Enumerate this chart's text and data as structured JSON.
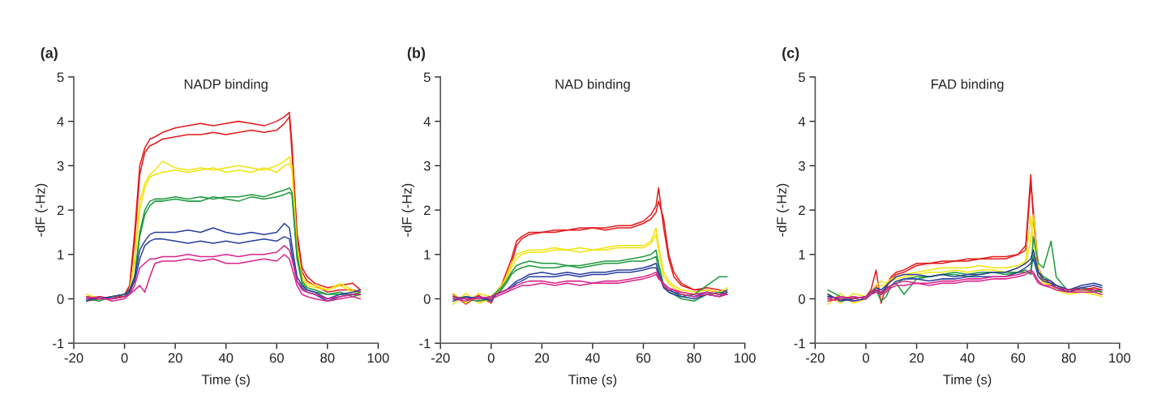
{
  "chart_data": [
    {
      "type": "line",
      "title": "NADP binding",
      "xlabel": "Time (s)",
      "ylabel": "-dF (-Hz)",
      "annotations": [
        "(a)"
      ],
      "xlim": [
        -20,
        100
      ],
      "xticks": [
        -20,
        0,
        20,
        40,
        60,
        80,
        100
      ],
      "ylim": [
        -1,
        5
      ],
      "yticks": [
        -1,
        0,
        1,
        2,
        3,
        4,
        5
      ],
      "grid": false,
      "legend": false,
      "x": [
        -15,
        -10,
        -5,
        0,
        2,
        4,
        6,
        8,
        10,
        12,
        15,
        20,
        25,
        30,
        35,
        40,
        45,
        50,
        55,
        60,
        63,
        65,
        66,
        68,
        70,
        72,
        75,
        80,
        85,
        90,
        93
      ],
      "series": [
        {
          "color": "#e31a1c",
          "values": [
            0.0,
            0.05,
            0.0,
            0.1,
            0.3,
            1.5,
            3.0,
            3.4,
            3.6,
            3.65,
            3.75,
            3.85,
            3.9,
            3.95,
            3.9,
            3.95,
            4.0,
            3.95,
            3.9,
            4.0,
            4.1,
            4.2,
            3.5,
            1.5,
            0.7,
            0.5,
            0.35,
            0.25,
            0.3,
            0.35,
            0.2
          ]
        },
        {
          "color": "#e31a1c",
          "values": [
            -0.05,
            0.0,
            0.05,
            0.05,
            0.25,
            1.3,
            2.8,
            3.3,
            3.45,
            3.5,
            3.6,
            3.65,
            3.7,
            3.7,
            3.75,
            3.7,
            3.75,
            3.8,
            3.75,
            3.8,
            3.95,
            4.1,
            3.3,
            1.4,
            0.6,
            0.4,
            0.3,
            0.15,
            0.2,
            0.2,
            0.15
          ]
        },
        {
          "color": "#f2e30c",
          "values": [
            0.1,
            0.0,
            0.05,
            0.1,
            0.2,
            0.9,
            2.2,
            2.6,
            2.8,
            2.9,
            3.1,
            2.95,
            2.9,
            2.95,
            2.9,
            2.95,
            3.0,
            2.95,
            2.9,
            3.0,
            3.1,
            3.2,
            3.0,
            1.2,
            0.5,
            0.35,
            0.3,
            0.2,
            0.35,
            0.2,
            0.05
          ]
        },
        {
          "color": "#f2e30c",
          "values": [
            0.05,
            0.05,
            0.0,
            0.05,
            0.2,
            0.8,
            2.0,
            2.5,
            2.75,
            2.8,
            2.85,
            2.9,
            2.85,
            2.9,
            2.95,
            2.85,
            2.9,
            2.85,
            2.95,
            2.85,
            3.0,
            3.05,
            2.9,
            1.1,
            0.45,
            0.3,
            0.25,
            0.2,
            0.3,
            0.15,
            0.1
          ]
        },
        {
          "color": "#1f9a3e",
          "values": [
            0.0,
            -0.05,
            0.05,
            0.1,
            0.15,
            0.5,
            1.5,
            2.0,
            2.2,
            2.25,
            2.25,
            2.3,
            2.25,
            2.3,
            2.25,
            2.3,
            2.3,
            2.35,
            2.3,
            2.4,
            2.45,
            2.5,
            2.4,
            1.0,
            0.4,
            0.25,
            0.2,
            0.1,
            0.15,
            0.05,
            0.1
          ]
        },
        {
          "color": "#1f9a3e",
          "values": [
            0.05,
            0.0,
            0.0,
            0.05,
            0.15,
            0.45,
            1.4,
            1.9,
            2.1,
            2.2,
            2.2,
            2.25,
            2.2,
            2.2,
            2.3,
            2.25,
            2.2,
            2.3,
            2.25,
            2.3,
            2.35,
            2.4,
            2.35,
            0.9,
            0.35,
            0.2,
            0.15,
            0.1,
            0.1,
            0.1,
            0.15
          ]
        },
        {
          "color": "#2b3f9e",
          "values": [
            0.0,
            0.0,
            0.05,
            0.1,
            0.2,
            0.5,
            1.1,
            1.3,
            1.45,
            1.5,
            1.5,
            1.5,
            1.55,
            1.5,
            1.6,
            1.5,
            1.45,
            1.5,
            1.45,
            1.5,
            1.7,
            1.6,
            1.2,
            0.5,
            0.3,
            0.2,
            0.15,
            0.0,
            0.1,
            0.15,
            0.2
          ]
        },
        {
          "color": "#2b3f9e",
          "values": [
            -0.05,
            0.05,
            0.0,
            0.05,
            0.15,
            0.4,
            0.9,
            1.2,
            1.3,
            1.35,
            1.35,
            1.3,
            1.25,
            1.3,
            1.25,
            1.3,
            1.25,
            1.3,
            1.35,
            1.3,
            1.4,
            1.35,
            1.0,
            0.4,
            0.25,
            0.15,
            0.1,
            -0.05,
            0.05,
            0.1,
            0.1
          ]
        },
        {
          "color": "#d9248b",
          "values": [
            0.05,
            0.0,
            0.0,
            0.05,
            0.1,
            0.3,
            0.7,
            0.8,
            0.9,
            0.9,
            0.95,
            0.95,
            1.0,
            0.95,
            0.95,
            1.0,
            0.95,
            1.0,
            1.0,
            1.05,
            1.2,
            1.1,
            0.9,
            0.4,
            0.2,
            0.15,
            0.1,
            0.0,
            0.05,
            0.1,
            0.1
          ]
        },
        {
          "color": "#d9248b",
          "values": [
            0.0,
            0.05,
            -0.05,
            0.0,
            0.1,
            0.2,
            0.3,
            0.15,
            0.5,
            0.8,
            0.85,
            0.85,
            0.9,
            0.85,
            0.9,
            0.8,
            0.8,
            0.85,
            0.9,
            0.85,
            1.0,
            0.9,
            0.7,
            0.3,
            0.1,
            0.05,
            0.0,
            -0.05,
            0.0,
            0.05,
            0.0
          ]
        }
      ]
    },
    {
      "type": "line",
      "title": "NAD binding",
      "xlabel": "Time (s)",
      "ylabel": "-dF (-Hz)",
      "annotations": [
        "(b)"
      ],
      "xlim": [
        -20,
        100
      ],
      "xticks": [
        -20,
        0,
        20,
        40,
        60,
        80,
        100
      ],
      "ylim": [
        -1,
        5
      ],
      "yticks": [
        -1,
        0,
        1,
        2,
        3,
        4,
        5
      ],
      "grid": false,
      "legend": false,
      "x": [
        -15,
        -10,
        -5,
        0,
        2,
        4,
        6,
        8,
        10,
        12,
        15,
        20,
        25,
        30,
        35,
        40,
        45,
        50,
        55,
        60,
        63,
        65,
        66,
        68,
        70,
        72,
        75,
        80,
        85,
        90,
        93
      ],
      "series": [
        {
          "color": "#e31a1c",
          "values": [
            0.1,
            -0.12,
            0.08,
            -0.1,
            0.15,
            0.3,
            0.6,
            0.9,
            1.3,
            1.4,
            1.5,
            1.5,
            1.55,
            1.55,
            1.6,
            1.6,
            1.6,
            1.65,
            1.65,
            1.75,
            1.9,
            2.1,
            2.5,
            1.6,
            0.9,
            0.5,
            0.3,
            0.2,
            0.25,
            0.2,
            0.15
          ]
        },
        {
          "color": "#e31a1c",
          "values": [
            0.05,
            0.0,
            -0.05,
            0.0,
            0.1,
            0.25,
            0.5,
            0.8,
            1.2,
            1.35,
            1.45,
            1.5,
            1.5,
            1.55,
            1.55,
            1.6,
            1.55,
            1.6,
            1.6,
            1.7,
            1.8,
            1.95,
            2.2,
            1.8,
            1.0,
            0.6,
            0.35,
            0.2,
            0.2,
            0.15,
            0.1
          ]
        },
        {
          "color": "#f2e30c",
          "values": [
            0.12,
            -0.1,
            0.12,
            0.05,
            0.15,
            0.3,
            0.5,
            0.8,
            1.0,
            1.05,
            1.1,
            1.1,
            1.15,
            1.1,
            1.15,
            1.1,
            1.15,
            1.2,
            1.2,
            1.2,
            1.3,
            1.6,
            1.2,
            0.6,
            0.4,
            0.3,
            0.2,
            0.15,
            0.2,
            0.15,
            0.25
          ]
        },
        {
          "color": "#f2e30c",
          "values": [
            -0.12,
            0.12,
            -0.1,
            0.0,
            0.1,
            0.25,
            0.45,
            0.7,
            0.9,
            1.0,
            1.05,
            1.05,
            1.1,
            1.1,
            1.05,
            1.1,
            1.1,
            1.15,
            1.15,
            1.15,
            1.25,
            1.45,
            1.1,
            0.5,
            0.35,
            0.25,
            0.15,
            0.1,
            0.15,
            0.1,
            0.1
          ]
        },
        {
          "color": "#1f9a3e",
          "values": [
            0.0,
            0.05,
            0.0,
            0.05,
            0.15,
            0.25,
            0.4,
            0.6,
            0.75,
            0.8,
            0.85,
            0.8,
            0.8,
            0.75,
            0.75,
            0.8,
            0.85,
            0.85,
            0.9,
            0.95,
            1.0,
            1.1,
            0.8,
            0.3,
            0.2,
            0.15,
            0.05,
            0.1,
            0.3,
            0.5,
            0.5
          ]
        },
        {
          "color": "#1f9a3e",
          "values": [
            0.05,
            0.0,
            -0.05,
            0.0,
            0.1,
            0.2,
            0.35,
            0.55,
            0.65,
            0.7,
            0.75,
            0.7,
            0.7,
            0.75,
            0.7,
            0.75,
            0.8,
            0.8,
            0.85,
            0.85,
            0.9,
            0.95,
            0.7,
            0.3,
            0.15,
            0.1,
            0.0,
            -0.05,
            0.1,
            0.15,
            0.1
          ]
        },
        {
          "color": "#2b3f9e",
          "values": [
            0.0,
            0.0,
            0.05,
            -0.05,
            0.1,
            0.15,
            0.2,
            0.3,
            0.4,
            0.45,
            0.55,
            0.6,
            0.55,
            0.6,
            0.55,
            0.6,
            0.6,
            0.65,
            0.65,
            0.7,
            0.75,
            0.8,
            0.6,
            0.3,
            0.2,
            0.15,
            0.1,
            0.05,
            0.15,
            0.1,
            0.2
          ]
        },
        {
          "color": "#2b3f9e",
          "values": [
            -0.05,
            0.05,
            0.0,
            0.0,
            0.1,
            0.15,
            0.2,
            0.25,
            0.35,
            0.4,
            0.5,
            0.5,
            0.5,
            0.55,
            0.5,
            0.55,
            0.55,
            0.6,
            0.6,
            0.65,
            0.7,
            0.7,
            0.55,
            0.25,
            0.15,
            0.1,
            0.05,
            0.0,
            0.1,
            0.05,
            0.15
          ]
        },
        {
          "color": "#d9248b",
          "values": [
            0.05,
            0.0,
            0.0,
            0.05,
            0.1,
            0.15,
            0.2,
            0.25,
            0.3,
            0.35,
            0.4,
            0.4,
            0.35,
            0.4,
            0.4,
            0.35,
            0.4,
            0.4,
            0.45,
            0.5,
            0.55,
            0.6,
            0.5,
            0.3,
            0.2,
            0.2,
            0.15,
            0.1,
            0.15,
            0.1,
            0.1
          ]
        },
        {
          "color": "#d9248b",
          "values": [
            0.0,
            -0.05,
            0.05,
            0.0,
            0.05,
            0.1,
            0.15,
            0.2,
            0.25,
            0.3,
            0.3,
            0.35,
            0.3,
            0.35,
            0.3,
            0.35,
            0.35,
            0.35,
            0.4,
            0.45,
            0.5,
            0.55,
            0.45,
            0.35,
            0.25,
            0.2,
            0.1,
            0.05,
            0.1,
            0.05,
            0.1
          ]
        }
      ]
    },
    {
      "type": "line",
      "title": "FAD binding",
      "xlabel": "Time (s)",
      "ylabel": "-dF (-Hz)",
      "annotations": [
        "(c)"
      ],
      "xlim": [
        -20,
        100
      ],
      "xticks": [
        -20,
        0,
        20,
        40,
        60,
        80,
        100
      ],
      "ylim": [
        -1,
        5
      ],
      "yticks": [
        -1,
        0,
        1,
        2,
        3,
        4,
        5
      ],
      "grid": false,
      "legend": false,
      "x": [
        -15,
        -10,
        -5,
        0,
        2,
        4,
        6,
        8,
        10,
        12,
        15,
        20,
        25,
        30,
        35,
        40,
        45,
        50,
        55,
        60,
        63,
        65,
        66,
        68,
        70,
        73,
        75,
        80,
        85,
        90,
        93
      ],
      "series": [
        {
          "color": "#e31a1c",
          "values": [
            0.0,
            -0.05,
            0.0,
            0.05,
            0.2,
            0.65,
            -0.1,
            0.3,
            0.5,
            0.6,
            0.65,
            0.8,
            0.8,
            0.85,
            0.85,
            0.9,
            0.9,
            0.95,
            0.95,
            1.0,
            1.2,
            2.8,
            1.8,
            0.6,
            0.4,
            0.3,
            0.25,
            0.15,
            0.2,
            0.25,
            0.2
          ]
        },
        {
          "color": "#e31a1c",
          "values": [
            0.05,
            0.0,
            -0.05,
            0.0,
            0.15,
            0.3,
            0.1,
            0.25,
            0.45,
            0.55,
            0.6,
            0.75,
            0.8,
            0.8,
            0.85,
            0.85,
            0.9,
            0.9,
            0.9,
            1.0,
            1.1,
            2.6,
            2.0,
            0.7,
            0.45,
            0.35,
            0.3,
            0.2,
            0.25,
            0.2,
            0.15
          ]
        },
        {
          "color": "#f2e30c",
          "values": [
            0.12,
            -0.1,
            0.12,
            0.05,
            0.15,
            0.3,
            0.4,
            0.35,
            0.45,
            0.5,
            0.55,
            0.6,
            0.65,
            0.7,
            0.7,
            0.7,
            0.75,
            0.7,
            0.7,
            0.75,
            0.85,
            1.85,
            1.2,
            0.5,
            0.35,
            0.3,
            0.2,
            0.1,
            0.15,
            0.1,
            0.05
          ]
        },
        {
          "color": "#f2e30c",
          "values": [
            -0.12,
            0.12,
            -0.1,
            0.0,
            0.1,
            0.25,
            0.3,
            0.3,
            0.4,
            0.45,
            0.5,
            0.55,
            0.6,
            0.6,
            0.65,
            0.6,
            0.65,
            0.65,
            0.6,
            0.7,
            0.8,
            1.3,
            1.9,
            0.7,
            0.4,
            0.3,
            0.25,
            0.15,
            0.2,
            0.15,
            0.1
          ]
        },
        {
          "color": "#1f9a3e",
          "values": [
            0.2,
            0.05,
            0.0,
            0.05,
            0.15,
            0.2,
            -0.05,
            0.05,
            0.3,
            0.35,
            0.1,
            0.45,
            0.5,
            0.55,
            0.6,
            0.55,
            0.6,
            0.6,
            0.6,
            0.6,
            0.6,
            0.6,
            1.4,
            0.8,
            0.7,
            1.3,
            0.5,
            0.15,
            0.25,
            0.15,
            0.2
          ]
        },
        {
          "color": "#1f9a3e",
          "values": [
            0.1,
            -0.05,
            0.05,
            0.0,
            0.1,
            0.2,
            0.1,
            0.2,
            0.3,
            0.35,
            0.45,
            0.5,
            0.5,
            0.55,
            0.55,
            0.5,
            0.55,
            0.6,
            0.55,
            0.6,
            0.65,
            0.55,
            1.0,
            0.6,
            0.5,
            0.4,
            0.3,
            0.2,
            0.2,
            0.2,
            0.15
          ]
        },
        {
          "color": "#2b3f9e",
          "values": [
            0.1,
            -0.05,
            0.0,
            0.05,
            0.15,
            0.25,
            0.2,
            0.3,
            0.4,
            0.5,
            0.55,
            0.55,
            0.5,
            0.55,
            0.5,
            0.55,
            0.55,
            0.6,
            0.6,
            0.7,
            0.8,
            0.9,
            1.1,
            0.6,
            0.45,
            0.4,
            0.3,
            0.2,
            0.3,
            0.35,
            0.3
          ]
        },
        {
          "color": "#2b3f9e",
          "values": [
            0.05,
            0.0,
            -0.05,
            0.0,
            0.1,
            0.2,
            0.15,
            0.25,
            0.3,
            0.4,
            0.45,
            0.45,
            0.4,
            0.45,
            0.45,
            0.5,
            0.5,
            0.5,
            0.5,
            0.6,
            0.7,
            0.8,
            0.9,
            0.5,
            0.4,
            0.35,
            0.25,
            0.15,
            0.25,
            0.3,
            0.25
          ]
        },
        {
          "color": "#d9248b",
          "values": [
            0.0,
            0.05,
            0.0,
            0.05,
            0.15,
            0.2,
            0.15,
            0.2,
            0.3,
            0.35,
            0.4,
            0.35,
            0.35,
            0.4,
            0.4,
            0.45,
            0.45,
            0.5,
            0.5,
            0.55,
            0.6,
            0.65,
            0.6,
            0.4,
            0.3,
            0.3,
            0.25,
            0.2,
            0.2,
            0.2,
            0.2
          ]
        },
        {
          "color": "#d9248b",
          "values": [
            -0.05,
            0.0,
            0.05,
            0.0,
            0.1,
            0.15,
            0.1,
            0.15,
            0.25,
            0.3,
            0.3,
            0.35,
            0.3,
            0.35,
            0.35,
            0.4,
            0.4,
            0.45,
            0.45,
            0.5,
            0.55,
            0.6,
            0.55,
            0.35,
            0.3,
            0.25,
            0.2,
            0.15,
            0.15,
            0.15,
            0.1
          ]
        }
      ]
    }
  ]
}
